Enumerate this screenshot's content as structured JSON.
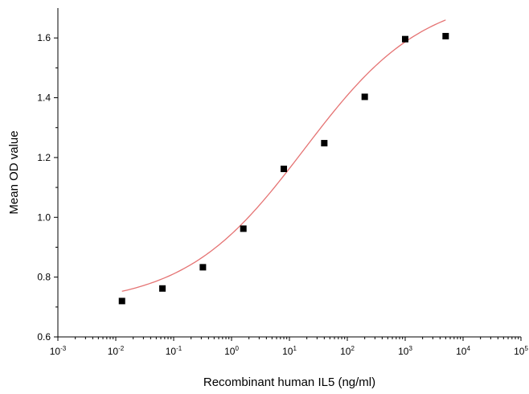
{
  "chart_data": {
    "type": "scatter",
    "title": "",
    "xlabel": "Recombinant human IL5 (ng/ml)",
    "ylabel": "Mean OD value",
    "x_scale": "log",
    "xlim": [
      0.001,
      100000
    ],
    "ylim": [
      0.6,
      1.7
    ],
    "x_ticks": [
      {
        "value": 0.001,
        "base": "10",
        "exp": "-3"
      },
      {
        "value": 0.01,
        "base": "10",
        "exp": "-2"
      },
      {
        "value": 0.1,
        "base": "10",
        "exp": "-1"
      },
      {
        "value": 1,
        "base": "10",
        "exp": "0"
      },
      {
        "value": 10,
        "base": "10",
        "exp": "1"
      },
      {
        "value": 100,
        "base": "10",
        "exp": "2"
      },
      {
        "value": 1000,
        "base": "10",
        "exp": "3"
      },
      {
        "value": 10000,
        "base": "10",
        "exp": "4"
      },
      {
        "value": 100000,
        "base": "10",
        "exp": "5"
      }
    ],
    "y_ticks": [
      {
        "value": 0.6,
        "label": "0.6"
      },
      {
        "value": 0.8,
        "label": "0.8"
      },
      {
        "value": 1.0,
        "label": "1.0"
      },
      {
        "value": 1.2,
        "label": "1.2"
      },
      {
        "value": 1.4,
        "label": "1.4"
      },
      {
        "value": 1.6,
        "label": "1.6"
      }
    ],
    "grid": false,
    "series": [
      {
        "marker": "square",
        "color": "#000000",
        "points": [
          {
            "x": 0.0128,
            "y": 0.72
          },
          {
            "x": 0.064,
            "y": 0.762
          },
          {
            "x": 0.32,
            "y": 0.833
          },
          {
            "x": 1.6,
            "y": 0.962
          },
          {
            "x": 8,
            "y": 1.162
          },
          {
            "x": 40,
            "y": 1.248
          },
          {
            "x": 200,
            "y": 1.403
          },
          {
            "x": 1000,
            "y": 1.596
          },
          {
            "x": 5000,
            "y": 1.606
          }
        ]
      }
    ],
    "fit": {
      "model": "4PL",
      "color": "#e57373",
      "bottom": 0.705,
      "top": 1.75,
      "ec50": 18,
      "hill": 0.42,
      "x_range": [
        0.0128,
        5000
      ]
    }
  }
}
